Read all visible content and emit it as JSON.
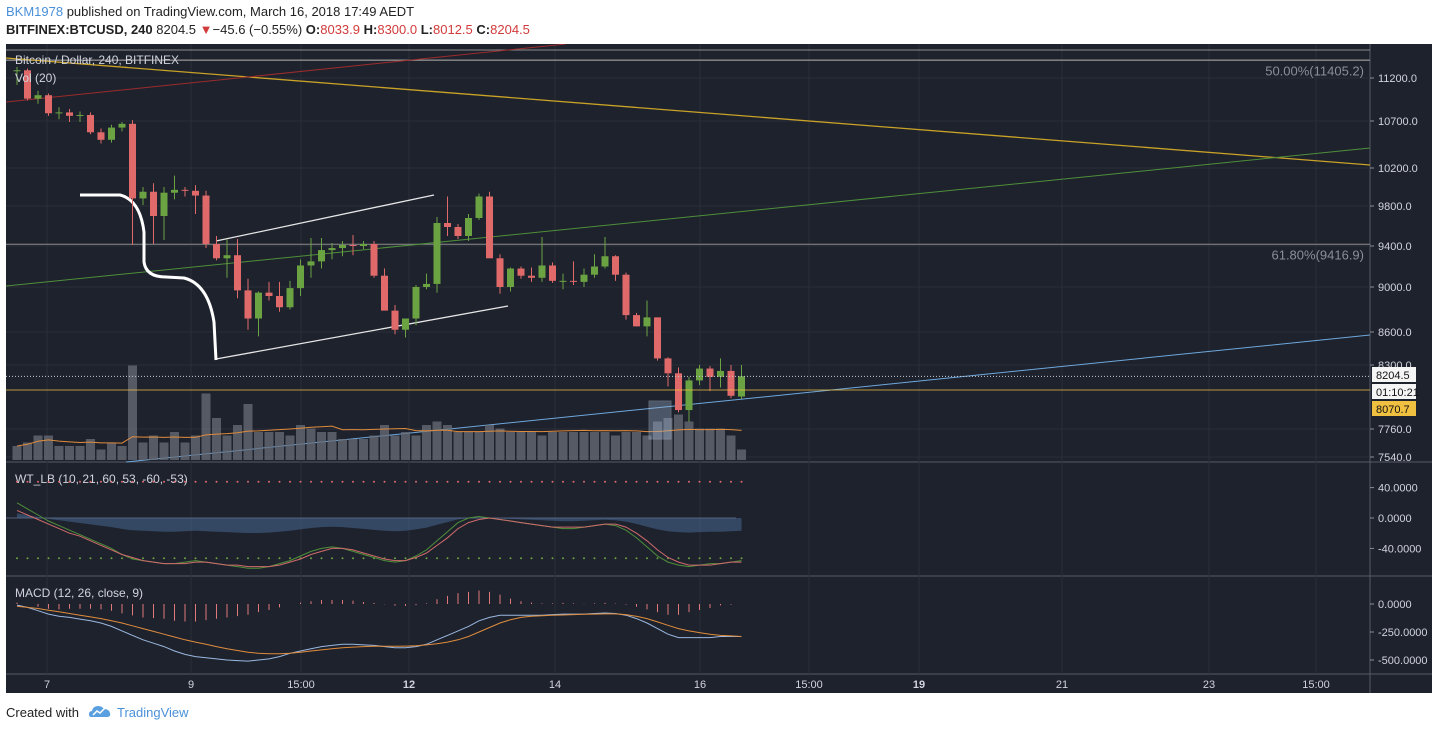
{
  "header": {
    "user": "BKM1978",
    "published": " published on TradingView.com, March 16, 2018 17:49 AEDT",
    "symbol": "BITFINEX:BTCUSD, 240",
    "last": "8204.5",
    "arrow": "▼",
    "change": "−45.6 (−0.55%)",
    "o_label": "O:",
    "o": "8033.9",
    "h_label": "H:",
    "h": "8300.0",
    "l_label": "L:",
    "l": "8012.5",
    "c_label": "C:",
    "c": "8204.5"
  },
  "footer": {
    "created": "Created with",
    "brand": "TradingView"
  },
  "colors": {
    "background": "#1e222d",
    "up": "#6ba342",
    "down": "#e06a6a",
    "grid": "#2a2e39",
    "axis_text": "#d1d4dc",
    "fib": "#8c8c8c",
    "yellow_trend": "#c9a227",
    "green_trend": "#4e8f3a",
    "red_trend": "#9b2c2c",
    "blue_trend": "#6fa8dc",
    "channel": "#e6e6e6",
    "price_tag": "#f5f5f5",
    "pending_tag": "#f0c040",
    "ma": "#e08c3c",
    "volume": "#6a6d78"
  },
  "chart_data": [
    {
      "type": "candlestick",
      "title": "Bitcoin / Dollar, 240, BITFINEX",
      "indicator_label": "Vol (20)",
      "y_ticks": [
        11200.0,
        10700.0,
        10200.0,
        9800.0,
        9400.0,
        9000.0,
        8600.0,
        8300.0,
        7760.0,
        7540.0
      ],
      "y_tick_labels": [
        "11200.0",
        "10700.0",
        "10200.0",
        "9800.0",
        "9400.0",
        "9000.0",
        "8600.0",
        "8300.0",
        "7760.0",
        "7540.0"
      ],
      "x_tick_labels": [
        "7",
        "9",
        "15:00",
        "12",
        "14",
        "16",
        "15:00",
        "19",
        "21",
        "23",
        "15:00"
      ],
      "x_tick_bold": [
        false,
        false,
        false,
        true,
        false,
        false,
        false,
        true,
        false,
        false,
        false
      ],
      "fib_levels": [
        {
          "label": "50.00%(11405.2)",
          "value": 11405.2
        },
        {
          "label": "61.80%(9416.9)",
          "value": 9416.9
        }
      ],
      "price_tags": [
        {
          "label": "8204.5",
          "value": 8204.5,
          "kind": "last"
        },
        {
          "label": "01:10:21",
          "kind": "countdown"
        },
        {
          "label": "8070.7",
          "value": 8070.7,
          "kind": "pending"
        }
      ],
      "candles": [
        [
          11280,
          11330,
          11120,
          11290
        ],
        [
          11290,
          11310,
          10940,
          10960
        ],
        [
          10960,
          11050,
          10900,
          11000
        ],
        [
          11000,
          11020,
          10760,
          10790
        ],
        [
          10790,
          10860,
          10720,
          10800
        ],
        [
          10800,
          10840,
          10690,
          10760
        ],
        [
          10760,
          10810,
          10690,
          10770
        ],
        [
          10770,
          10800,
          10560,
          10580
        ],
        [
          10580,
          10620,
          10460,
          10500
        ],
        [
          10500,
          10660,
          10470,
          10630
        ],
        [
          10630,
          10690,
          10590,
          10670
        ],
        [
          10670,
          10710,
          9410,
          9880
        ],
        [
          9880,
          10000,
          9810,
          9950
        ],
        [
          9950,
          10040,
          9420,
          9700
        ],
        [
          9700,
          10000,
          9460,
          9940
        ],
        [
          9940,
          10120,
          9870,
          9970
        ],
        [
          9970,
          10000,
          9900,
          9960
        ],
        [
          9960,
          10020,
          9720,
          9910
        ],
        [
          9910,
          9960,
          9380,
          9420
        ],
        [
          9420,
          9500,
          9260,
          9280
        ],
        [
          9280,
          9470,
          9090,
          9310
        ],
        [
          9310,
          9470,
          8900,
          8970
        ],
        [
          8970,
          9080,
          8620,
          8720
        ],
        [
          8720,
          8960,
          8560,
          8950
        ],
        [
          8950,
          9050,
          8880,
          8920
        ],
        [
          8920,
          9050,
          8780,
          8820
        ],
        [
          8820,
          9060,
          8800,
          8990
        ],
        [
          8990,
          9270,
          8920,
          9210
        ],
        [
          9210,
          9480,
          9090,
          9250
        ],
        [
          9250,
          9480,
          9180,
          9360
        ],
        [
          9360,
          9430,
          9270,
          9380
        ],
        [
          9380,
          9450,
          9300,
          9410
        ],
        [
          9410,
          9510,
          9310,
          9400
        ],
        [
          9400,
          9450,
          9370,
          9420
        ],
        [
          9420,
          9450,
          9090,
          9110
        ],
        [
          9110,
          9180,
          8810,
          8790
        ],
        [
          8790,
          8840,
          8580,
          8620
        ],
        [
          8620,
          8720,
          8550,
          8720
        ],
        [
          8720,
          9020,
          8660,
          9000
        ],
        [
          9000,
          9130,
          8980,
          9030
        ],
        [
          9030,
          9690,
          8950,
          9630
        ],
        [
          9630,
          9900,
          9500,
          9590
        ],
        [
          9590,
          9620,
          9470,
          9500
        ],
        [
          9500,
          9720,
          9450,
          9680
        ],
        [
          9680,
          9930,
          9660,
          9900
        ],
        [
          9900,
          9950,
          9300,
          9280
        ],
        [
          9280,
          9320,
          8940,
          9000
        ],
        [
          9000,
          9190,
          8960,
          9180
        ],
        [
          9180,
          9200,
          9080,
          9110
        ],
        [
          9110,
          9190,
          9050,
          9090
        ],
        [
          9090,
          9490,
          9050,
          9210
        ],
        [
          9210,
          9240,
          9040,
          9060
        ],
        [
          9060,
          9130,
          8980,
          9060
        ],
        [
          9060,
          9250,
          9020,
          9050
        ],
        [
          9050,
          9180,
          9000,
          9120
        ],
        [
          9120,
          9320,
          9090,
          9200
        ],
        [
          9200,
          9490,
          9180,
          9300
        ],
        [
          9300,
          9310,
          9060,
          9120
        ],
        [
          9120,
          9140,
          8710,
          8750
        ],
        [
          8750,
          8770,
          8650,
          8650
        ],
        [
          8650,
          8880,
          8560,
          8730
        ],
        [
          8730,
          8730,
          8340,
          8360
        ],
        [
          8360,
          8370,
          8120,
          8230
        ],
        [
          8230,
          8280,
          7900,
          7920
        ],
        [
          7920,
          8200,
          7820,
          8170
        ],
        [
          8170,
          8300,
          8130,
          8270
        ],
        [
          8270,
          8290,
          8080,
          8200
        ],
        [
          8200,
          8360,
          8110,
          8250
        ],
        [
          8250,
          8300,
          8020,
          8040
        ],
        [
          8034,
          8300,
          8013,
          8205
        ]
      ],
      "volume": [
        2,
        2.5,
        3.5,
        3.5,
        2,
        2,
        2,
        3,
        1.5,
        2.5,
        2,
        13.5,
        2.5,
        3.5,
        2.5,
        4,
        2.5,
        3.5,
        9.5,
        6,
        3.5,
        5,
        8,
        4,
        4,
        4,
        3.5,
        5,
        4.5,
        4,
        4,
        3,
        3,
        3,
        3.5,
        5,
        3.5,
        4,
        3.5,
        5,
        5.5,
        5,
        4,
        4,
        4,
        5,
        4.5,
        4,
        4,
        4,
        3.5,
        4,
        4,
        4,
        4,
        4,
        4,
        3.5,
        4,
        4,
        3.5,
        5.5,
        6,
        6.5,
        5.5,
        4.5,
        4.5,
        4.5,
        3.5,
        1.5
      ]
    },
    {
      "type": "line",
      "title": "WT_LB (10, 21, 60, 53, -60, -53)",
      "y_ticks": [
        40,
        0,
        -40
      ],
      "y_tick_labels": [
        "40.0000",
        "0.0000",
        "-40.0000"
      ],
      "series": [
        {
          "values": [
            20,
            12,
            4,
            -4,
            -10,
            -16,
            -22,
            -28,
            -34,
            -40,
            -48,
            -54,
            -56,
            -58,
            -60,
            -60,
            -58,
            -56,
            -58,
            -60,
            -62,
            -64,
            -66,
            -66,
            -64,
            -60,
            -56,
            -50,
            -44,
            -40,
            -38,
            -40,
            -44,
            -48,
            -52,
            -56,
            -58,
            -56,
            -50,
            -42,
            -30,
            -18,
            -6,
            0,
            2,
            0,
            -2,
            -4,
            -6,
            -8,
            -10,
            -12,
            -14,
            -14,
            -12,
            -10,
            -8,
            -10,
            -16,
            -26,
            -38,
            -50,
            -58,
            -62,
            -64,
            -62,
            -60,
            -60,
            -58,
            -56
          ]
        },
        {
          "values": [
            10,
            4,
            -2,
            -8,
            -14,
            -20,
            -24,
            -30,
            -36,
            -42,
            -48,
            -52,
            -56,
            -58,
            -60,
            -60,
            -60,
            -58,
            -58,
            -60,
            -62,
            -62,
            -64,
            -64,
            -64,
            -62,
            -58,
            -54,
            -48,
            -44,
            -40,
            -40,
            -42,
            -46,
            -50,
            -54,
            -56,
            -56,
            -52,
            -46,
            -36,
            -26,
            -14,
            -6,
            -2,
            0,
            -2,
            -4,
            -6,
            -8,
            -10,
            -12,
            -12,
            -12,
            -12,
            -10,
            -8,
            -8,
            -12,
            -20,
            -30,
            -42,
            -52,
            -58,
            -62,
            -62,
            -62,
            -60,
            -58,
            -58
          ]
        }
      ]
    },
    {
      "type": "line",
      "title": "MACD (12, 26, close, 9)",
      "y_ticks": [
        0,
        -250,
        -500
      ],
      "y_tick_labels": [
        "0.0000",
        "-250.0000",
        "-500.0000"
      ],
      "series": [
        {
          "values": [
            -10,
            -30,
            -60,
            -90,
            -110,
            -120,
            -135,
            -150,
            -170,
            -200,
            -240,
            -280,
            -320,
            -350,
            -380,
            -420,
            -450,
            -470,
            -480,
            -490,
            -500,
            -505,
            -510,
            -500,
            -490,
            -470,
            -440,
            -420,
            -400,
            -380,
            -370,
            -360,
            -360,
            -365,
            -370,
            -380,
            -390,
            -390,
            -380,
            -360,
            -320,
            -280,
            -240,
            -200,
            -150,
            -120,
            -100,
            -100,
            -100,
            -100,
            -100,
            -95,
            -90,
            -90,
            -90,
            -85,
            -80,
            -85,
            -100,
            -130,
            -170,
            -220,
            -270,
            -300,
            -300,
            -300,
            -300,
            -290,
            -290,
            -290
          ]
        },
        {
          "values": [
            -20,
            -30,
            -40,
            -55,
            -70,
            -85,
            -100,
            -115,
            -130,
            -150,
            -170,
            -195,
            -220,
            -245,
            -270,
            -295,
            -320,
            -340,
            -360,
            -380,
            -400,
            -415,
            -430,
            -440,
            -445,
            -445,
            -440,
            -430,
            -420,
            -410,
            -400,
            -390,
            -385,
            -380,
            -378,
            -378,
            -378,
            -376,
            -372,
            -365,
            -355,
            -340,
            -320,
            -290,
            -250,
            -210,
            -170,
            -140,
            -120,
            -110,
            -105,
            -100,
            -98,
            -95,
            -92,
            -90,
            -88,
            -88,
            -95,
            -110,
            -130,
            -160,
            -190,
            -220,
            -240,
            -255,
            -270,
            -280,
            -285,
            -290
          ]
        }
      ]
    }
  ]
}
